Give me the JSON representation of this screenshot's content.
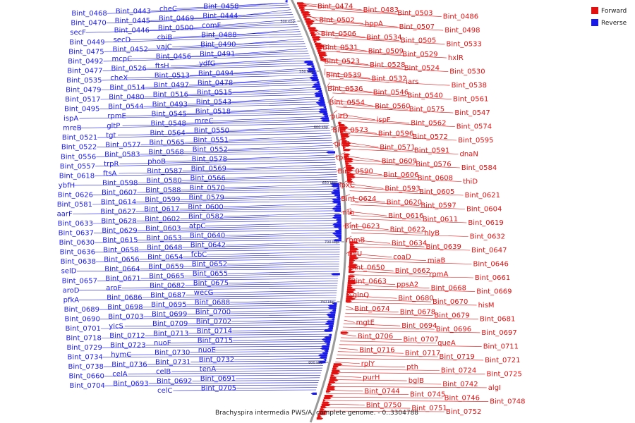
{
  "colors": {
    "forward": "#e11111",
    "reverse": "#1a1ae6",
    "backbone": "#9a9a9a"
  },
  "legend": [
    {
      "key": "forward",
      "label": "Forward"
    },
    {
      "key": "reverse",
      "label": "Reverse"
    }
  ],
  "caption": "Brachyspira intermedia PWS/A, complete genome. - 0..3304788",
  "ticks": [
    "500 kbp",
    "550 kbp",
    "600 kbp",
    "650 kbp",
    "700 kbp",
    "750 kbp",
    "800 kbp"
  ],
  "reverse_labels": [
    "Bint_0458",
    "cheC",
    "Bint_0443",
    "Bint_0468",
    "Bint_0444",
    "Bint_0469",
    "Bint_0445",
    "Bint_0470",
    "comF",
    "Bint_0500",
    "Bint_0446",
    "secF",
    "Bint_0488",
    "cbiB",
    "secD",
    "Bint_0449",
    "Bint_0490",
    "vajC",
    "Bint_0452",
    "Bint_0475",
    "Bint_0491",
    "Bint_0456",
    "mcpC",
    "Bint_0492",
    "ydfG",
    "ftsH",
    "Bint_0526",
    "Bint_0477",
    "Bint_0494",
    "Bint_0513",
    "cheX",
    "Bint_0535",
    "Bint_0478",
    "Bint_0497",
    "Bint_0514",
    "Bint_0479",
    "Bint_0515",
    "Bint_0516",
    "Bint_0480",
    "Bint_0517",
    "Bint_0543",
    "Bint_0493",
    "Bint_0544",
    "Bint_0495",
    "Bint_0518",
    "Bint_0545",
    "rpmE",
    "ispA",
    "mreC",
    "Bint_0548",
    "gltP",
    "mreB",
    "Bint_0550",
    "Bint_0564",
    "tgt",
    "Bint_0521",
    "Bint_0551",
    "Bint_0565",
    "Bint_0577",
    "Bint_0522",
    "Bint_0552",
    "Bint_0568",
    "Bint_0583",
    "Bint_0556",
    "Bint_0578",
    "phoB",
    "trpR",
    "Bint_0557",
    "Bint_0569",
    "Bint_0587",
    "ftsA",
    "Bint_0618",
    "Bint_0566",
    "Bint_0580",
    "Bint_0598",
    "ybfH",
    "Bint_0570",
    "Bint_0588",
    "Bint_0607",
    "Bint_0626",
    "Bint_0579",
    "Bint_0599",
    "Bint_0614",
    "Bint_0581",
    "Bint_0600",
    "Bint_0617",
    "Bint_0627",
    "aarF",
    "Bint_0582",
    "Bint_0602",
    "Bint_0628",
    "Bint_0633",
    "atpC",
    "Bint_0603",
    "Bint_0629",
    "Bint_0637",
    "Bint_0640",
    "Bint_0653",
    "Bint_0615",
    "Bint_0630",
    "Bint_0642",
    "Bint_0648",
    "Bint_0658",
    "Bint_0636",
    "fcbC",
    "Bint_0654",
    "Bint_0656",
    "Bint_0638",
    "Bint_0652",
    "Bint_0659",
    "Bint_0664",
    "selD",
    "Bint_0655",
    "Bint_0665",
    "Bint_0671",
    "Bint_0657",
    "Bint_0675",
    "Bint_0682",
    "aroE",
    "aroD",
    "wecG",
    "Bint_0687",
    "Bint_0686",
    "pfkA",
    "Bint_0688",
    "Bint_0695",
    "Bint_0698",
    "Bint_0689",
    "Bint_0700",
    "Bint_0699",
    "Bint_0703",
    "Bint_0690",
    "Bint_0702",
    "Bint_0709",
    "yicS",
    "Bint_0701",
    "Bint_0714",
    "Bint_0713",
    "Bint_0712",
    "Bint_0718",
    "Bint_0715",
    "nuoF",
    "Bint_0723",
    "Bint_0729",
    "nuoE",
    "Bint_0730",
    "hymC",
    "Bint_0734",
    "Bint_0732",
    "Bint_0731",
    "Bint_0736",
    "Bint_0738",
    "tenA",
    "celB",
    "celA",
    "Bint_0660",
    "Bint_0691",
    "Bint_0692",
    "Bint_0693",
    "Bint_0704",
    "Bint_0705",
    "celC"
  ],
  "forward_labels": [
    "Bint_0474",
    "Bint_0483",
    "Bint_0503",
    "Bint_0486",
    "Bint_0502",
    "hppA",
    "Bint_0507",
    "Bint_0498",
    "Bint_0506",
    "Bint_0534",
    "Bint_0505",
    "Bint_0533",
    "Bint_0531",
    "Bint_0509",
    "Bint_0529",
    "hxlR",
    "Bint_0523",
    "Bint_0528",
    "Bint_0524",
    "Bint_0530",
    "Bint_0539",
    "Bint_0532",
    "iars",
    "Bint_0538",
    "Bint_0536",
    "Bint_0546",
    "Bint_0540",
    "Bint_0561",
    "Bint_0554",
    "Bint_0560",
    "Bint_0575",
    "Bint_0547",
    "purD",
    "ispF",
    "Bint_0562",
    "Bint_0574",
    "Bint_0573",
    "Bint_0596",
    "Bint_0572",
    "Bint_0595",
    "gidB",
    "Bint_0571",
    "Bint_0591",
    "dnaN",
    "tpiA",
    "Bint_0609",
    "Bint_0576",
    "Bint_0584",
    "Bint_0590",
    "Bint_0606",
    "Bint_0608",
    "thiD",
    "lpxC",
    "Bint_0593",
    "Bint_0605",
    "Bint_0621",
    "Bint_0624",
    "Bint_0620",
    "Bint_0597",
    "Bint_0604",
    "nth",
    "Bint_0616",
    "Bint_0611",
    "Bint_0619",
    "Bint_0623",
    "Bint_0622",
    "hlyB",
    "Bint_0632",
    "rpmB",
    "Bint_0634",
    "Bint_0639",
    "Bint_0647",
    "rplU",
    "coaD",
    "miaB",
    "Bint_0646",
    "Bint_0650",
    "Bint_0662",
    "rpmA",
    "Bint_0661",
    "Bint_0663",
    "ppsA2",
    "Bint_0668",
    "Bint_0669",
    "glnQ",
    "Bint_0680",
    "Bint_0670",
    "hisM",
    "Bint_0674",
    "Bint_0678",
    "Bint_0679",
    "Bint_0681",
    "mgtE",
    "Bint_0694",
    "Bint_0696",
    "Bint_0697",
    "Bint_0706",
    "Bint_0707",
    "queA",
    "Bint_0711",
    "Bint_0716",
    "Bint_0717",
    "Bint_0719",
    "Bint_0721",
    "rplY",
    "pth",
    "Bint_0724",
    "Bint_0725",
    "purH",
    "bglB",
    "Bint_0742",
    "algI",
    "Bint_0744",
    "Bint_0745",
    "Bint_0746",
    "Bint_0748",
    "Bint_0750",
    "Bint_0751",
    "Bint_0752"
  ]
}
